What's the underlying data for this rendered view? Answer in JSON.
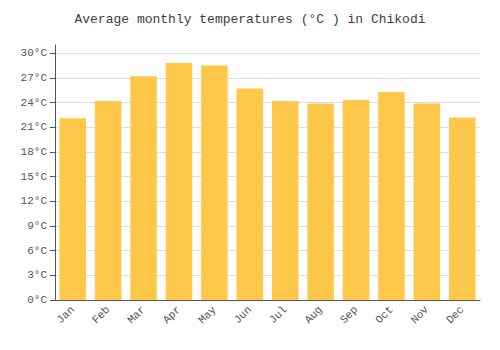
{
  "chart_data": {
    "type": "bar",
    "title": "Average monthly temperatures (°C ) in Chikodi",
    "categories": [
      "Jan",
      "Feb",
      "Mar",
      "Apr",
      "May",
      "Jun",
      "Jul",
      "Aug",
      "Sep",
      "Oct",
      "Nov",
      "Dec"
    ],
    "values": [
      22.1,
      24.2,
      27.2,
      28.8,
      28.5,
      25.7,
      24.2,
      23.9,
      24.3,
      25.3,
      23.9,
      22.2
    ],
    "color": "#FFC84A",
    "ylim": [
      0,
      31
    ],
    "yticks": [
      {
        "value": 0,
        "label": "0°C"
      },
      {
        "value": 3,
        "label": "3°C"
      },
      {
        "value": 6,
        "label": "6°C"
      },
      {
        "value": 9,
        "label": "9°C"
      },
      {
        "value": 12,
        "label": "12°C"
      },
      {
        "value": 15,
        "label": "15°C"
      },
      {
        "value": 18,
        "label": "18°C"
      },
      {
        "value": 21,
        "label": "21°C"
      },
      {
        "value": 24,
        "label": "24°C"
      },
      {
        "value": 27,
        "label": "27°C"
      },
      {
        "value": 30,
        "label": "30°C"
      }
    ],
    "grid": true
  }
}
